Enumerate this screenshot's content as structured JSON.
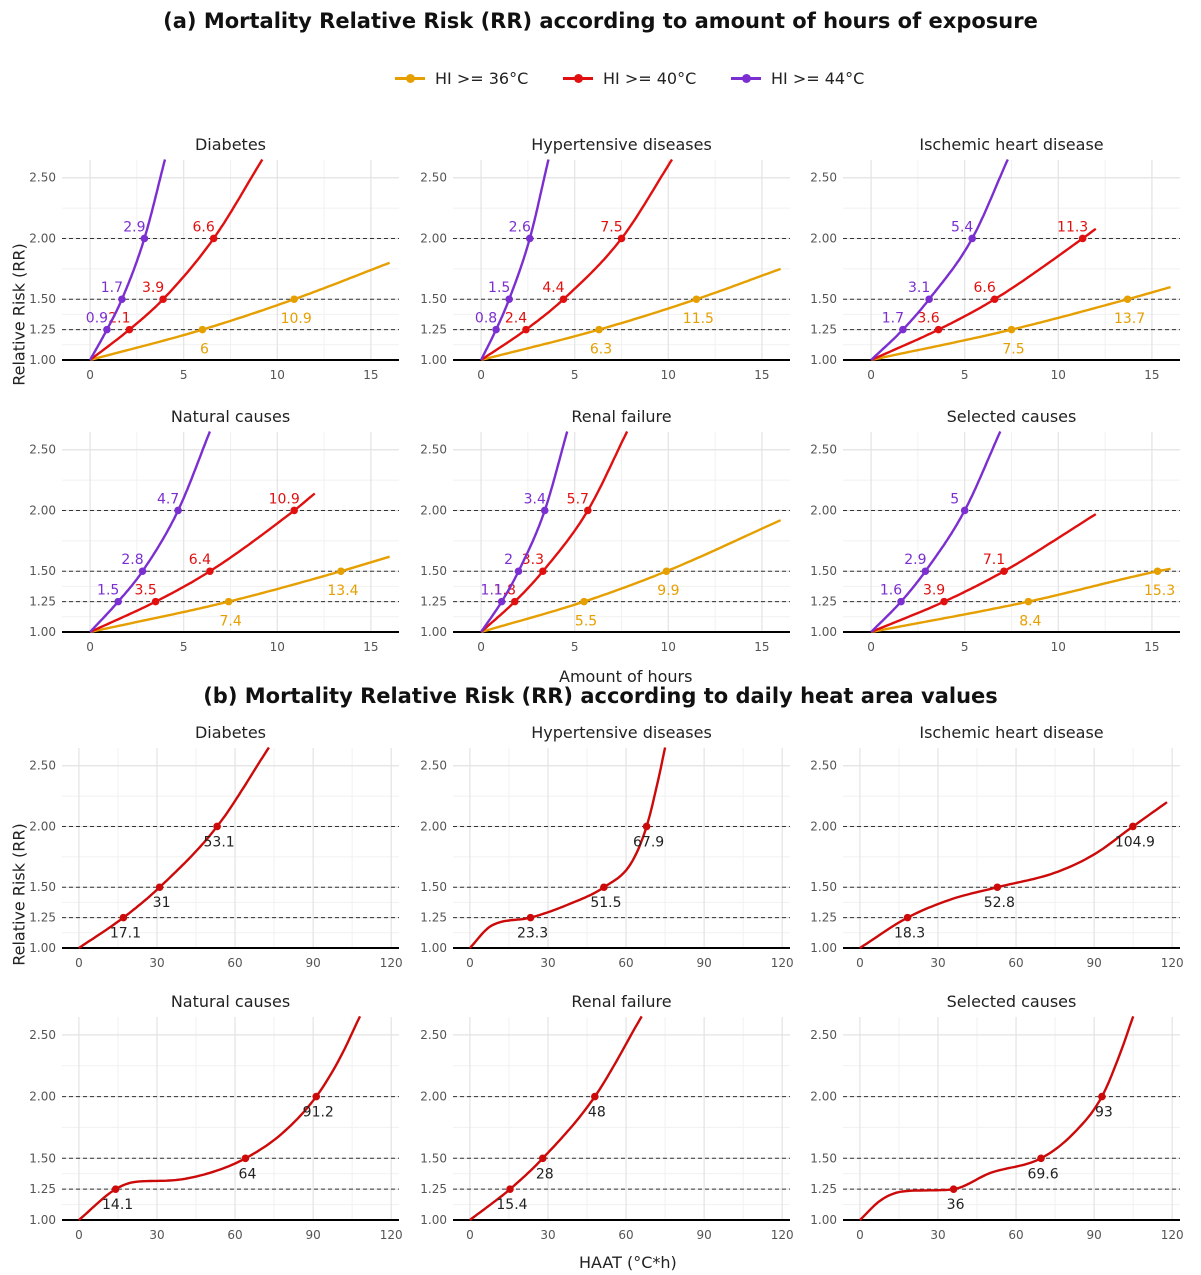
{
  "figure": {
    "title_a": "(a) Mortality Relative Risk (RR) according to amount of hours of exposure",
    "title_b": "(b) Mortality Relative Risk (RR) according to daily heat area values",
    "xlabel_a": "Amount of hours",
    "ylabel_a": "Relative Risk (RR)",
    "xlabel_b": "HAAT (°C*h)",
    "ylabel_b": "Relative Risk (RR)",
    "legend": [
      {
        "label": "HI >= 36°C",
        "color": "#E69F00"
      },
      {
        "label": "HI >= 40°C",
        "color": "#E01010"
      },
      {
        "label": "HI >= 44°C",
        "color": "#7B2FD0"
      }
    ]
  },
  "chart_data": [
    {
      "type": "line",
      "title": "(a) Mortality Relative Risk (RR) according to amount of hours of exposure",
      "xlabel": "Amount of hours",
      "ylabel": "Relative Risk (RR)",
      "xlim": [
        -1.5,
        16.5
      ],
      "ylim": [
        1.0,
        2.58
      ],
      "xticks": [
        0,
        5,
        10,
        15
      ],
      "xtick_labels": [
        "0",
        "5",
        "10",
        "15"
      ],
      "yticks": [
        1.0,
        1.25,
        1.5,
        2.0,
        2.5
      ],
      "ytick_labels": [
        "1.00",
        "1.25",
        "1.50",
        "2.00",
        "2.50"
      ],
      "reference_lines": [
        1.25,
        1.5,
        2.0
      ],
      "grid": true,
      "legend_position": "top",
      "panels": [
        {
          "title": "Diabetes",
          "series": [
            {
              "name": "HI >= 36°C",
              "color": "#E69F00",
              "x": [
                0,
                6,
                10.9,
                16
              ],
              "y": [
                1.0,
                1.25,
                1.5,
                1.8
              ],
              "x_end": 16,
              "points": [
                6,
                10.9
              ],
              "labels": [
                "6",
                "10.9"
              ]
            },
            {
              "name": "HI >= 40°C",
              "color": "#E01010",
              "x": [
                0,
                2.1,
                3.9,
                6.6,
                9.2
              ],
              "y": [
                1.0,
                1.25,
                1.5,
                2.0,
                2.65
              ],
              "x_end": 9.2,
              "points": [
                2.1,
                3.9,
                6.6
              ],
              "labels": [
                "2.1",
                "3.9",
                "6.6"
              ]
            },
            {
              "name": "HI >= 44°C",
              "color": "#7B2FD0",
              "x": [
                0,
                0.9,
                1.7,
                2.9,
                4.0
              ],
              "y": [
                1.0,
                1.25,
                1.5,
                2.0,
                2.65
              ],
              "x_end": 4.0,
              "points": [
                0.9,
                1.7,
                2.9
              ],
              "labels": [
                "0.9",
                "1.7",
                "2.9"
              ]
            }
          ]
        },
        {
          "title": "Hypertensive diseases",
          "series": [
            {
              "name": "HI >= 36°C",
              "color": "#E69F00",
              "x": [
                0,
                6.3,
                11.5,
                16
              ],
              "y": [
                1.0,
                1.25,
                1.5,
                1.75
              ],
              "x_end": 16,
              "points": [
                6.3,
                11.5
              ],
              "labels": [
                "6.3",
                "11.5"
              ]
            },
            {
              "name": "HI >= 40°C",
              "color": "#E01010",
              "x": [
                0,
                2.4,
                4.4,
                7.5,
                10.2
              ],
              "y": [
                1.0,
                1.25,
                1.5,
                2.0,
                2.65
              ],
              "x_end": 10.2,
              "points": [
                2.4,
                4.4,
                7.5
              ],
              "labels": [
                "2.4",
                "4.4",
                "7.5"
              ]
            },
            {
              "name": "HI >= 44°C",
              "color": "#7B2FD0",
              "x": [
                0,
                0.8,
                1.5,
                2.6,
                3.6
              ],
              "y": [
                1.0,
                1.25,
                1.5,
                2.0,
                2.65
              ],
              "x_end": 3.6,
              "points": [
                0.8,
                1.5,
                2.6
              ],
              "labels": [
                "0.8",
                "1.5",
                "2.6"
              ]
            }
          ]
        },
        {
          "title": "Ischemic heart disease",
          "series": [
            {
              "name": "HI >= 36°C",
              "color": "#E69F00",
              "x": [
                0,
                7.5,
                13.7,
                16
              ],
              "y": [
                1.0,
                1.25,
                1.5,
                1.6
              ],
              "x_end": 16,
              "points": [
                7.5,
                13.7
              ],
              "labels": [
                "7.5",
                "13.7"
              ]
            },
            {
              "name": "HI >= 40°C",
              "color": "#E01010",
              "x": [
                0,
                3.6,
                6.6,
                11.3,
                12
              ],
              "y": [
                1.0,
                1.25,
                1.5,
                2.0,
                2.08
              ],
              "x_end": 12,
              "points": [
                3.6,
                6.6,
                11.3
              ],
              "labels": [
                "3.6",
                "6.6",
                "11.3"
              ]
            },
            {
              "name": "HI >= 44°C",
              "color": "#7B2FD0",
              "x": [
                0,
                1.7,
                3.1,
                5.4,
                7.3
              ],
              "y": [
                1.0,
                1.25,
                1.5,
                2.0,
                2.65
              ],
              "x_end": 7.3,
              "points": [
                1.7,
                3.1,
                5.4
              ],
              "labels": [
                "1.7",
                "3.1",
                "5.4"
              ]
            }
          ]
        },
        {
          "title": "Natural causes",
          "series": [
            {
              "name": "HI >= 36°C",
              "color": "#E69F00",
              "x": [
                0,
                7.4,
                13.4,
                16
              ],
              "y": [
                1.0,
                1.25,
                1.5,
                1.62
              ],
              "x_end": 16,
              "points": [
                7.4,
                13.4
              ],
              "labels": [
                "7.4",
                "13.4"
              ]
            },
            {
              "name": "HI >= 40°C",
              "color": "#E01010",
              "x": [
                0,
                3.5,
                6.4,
                10.9,
                12
              ],
              "y": [
                1.0,
                1.25,
                1.5,
                2.0,
                2.14
              ],
              "x_end": 12,
              "points": [
                3.5,
                6.4,
                10.9
              ],
              "labels": [
                "3.5",
                "6.4",
                "10.9"
              ]
            },
            {
              "name": "HI >= 44°C",
              "color": "#7B2FD0",
              "x": [
                0,
                1.5,
                2.8,
                4.7,
                6.4
              ],
              "y": [
                1.0,
                1.25,
                1.5,
                2.0,
                2.65
              ],
              "x_end": 6.4,
              "points": [
                1.5,
                2.8,
                4.7
              ],
              "labels": [
                "1.5",
                "2.8",
                "4.7"
              ]
            }
          ]
        },
        {
          "title": "Renal failure",
          "series": [
            {
              "name": "HI >= 36°C",
              "color": "#E69F00",
              "x": [
                0,
                5.5,
                9.9,
                16
              ],
              "y": [
                1.0,
                1.25,
                1.5,
                1.92
              ],
              "x_end": 16,
              "points": [
                5.5,
                9.9
              ],
              "labels": [
                "5.5",
                "9.9"
              ]
            },
            {
              "name": "HI >= 40°C",
              "color": "#E01010",
              "x": [
                0,
                1.8,
                3.3,
                5.7,
                7.8
              ],
              "y": [
                1.0,
                1.25,
                1.5,
                2.0,
                2.65
              ],
              "x_end": 7.8,
              "points": [
                1.8,
                3.3,
                5.7
              ],
              "labels": [
                "1.8",
                "3.3",
                "5.7"
              ]
            },
            {
              "name": "HI >= 44°C",
              "color": "#7B2FD0",
              "x": [
                0,
                1.1,
                2.0,
                3.4,
                4.6
              ],
              "y": [
                1.0,
                1.25,
                1.5,
                2.0,
                2.65
              ],
              "x_end": 4.6,
              "points": [
                1.1,
                2.0,
                3.4
              ],
              "labels": [
                "1.1",
                "2",
                "3.4"
              ]
            }
          ]
        },
        {
          "title": "Selected causes",
          "series": [
            {
              "name": "HI >= 36°C",
              "color": "#E69F00",
              "x": [
                0,
                8.4,
                15.3,
                16
              ],
              "y": [
                1.0,
                1.25,
                1.5,
                1.52
              ],
              "x_end": 16,
              "points": [
                8.4,
                15.3
              ],
              "labels": [
                "8.4",
                "15.3"
              ]
            },
            {
              "name": "HI >= 40°C",
              "color": "#E01010",
              "x": [
                0,
                3.9,
                7.1,
                12
              ],
              "y": [
                1.0,
                1.25,
                1.5,
                1.97
              ],
              "x_end": 12,
              "points": [
                3.9,
                7.1
              ],
              "labels": [
                "3.9",
                "7.1"
              ]
            },
            {
              "name": "HI >= 44°C",
              "color": "#7B2FD0",
              "x": [
                0,
                1.6,
                2.9,
                5.0,
                6.9
              ],
              "y": [
                1.0,
                1.25,
                1.5,
                2.0,
                2.65
              ],
              "x_end": 6.9,
              "points": [
                1.6,
                2.9,
                5.0
              ],
              "labels": [
                "1.6",
                "2.9",
                "5"
              ]
            }
          ]
        }
      ]
    },
    {
      "type": "line",
      "title": "(b) Mortality Relative Risk (RR) according to daily heat area values",
      "xlabel": "HAAT (°C*h)",
      "ylabel": "Relative Risk (RR)",
      "xlim": [
        -6.5,
        123
      ],
      "ylim": [
        1.0,
        2.58
      ],
      "xticks": [
        0,
        30,
        60,
        90,
        120
      ],
      "xtick_labels": [
        "0",
        "30",
        "60",
        "90",
        "120"
      ],
      "yticks": [
        1.0,
        1.25,
        1.5,
        2.0,
        2.5
      ],
      "ytick_labels": [
        "1.00",
        "1.25",
        "1.50",
        "2.00",
        "2.50"
      ],
      "reference_lines": [
        1.25,
        1.5,
        2.0
      ],
      "grid": true,
      "panels": [
        {
          "title": "Diabetes",
          "series": [
            {
              "name": "HAAT",
              "color": "#CC0A0A",
              "x": [
                0,
                17.1,
                31,
                53.1,
                73
              ],
              "y": [
                1.0,
                1.25,
                1.5,
                2.0,
                2.65
              ],
              "x_end": 73,
              "points": [
                17.1,
                31,
                53.1
              ],
              "labels": [
                "17.1",
                "31",
                "53.1"
              ]
            }
          ]
        },
        {
          "title": "Hypertensive diseases",
          "series": [
            {
              "name": "HAAT",
              "color": "#CC0A0A",
              "x": [
                0,
                8,
                23.3,
                38,
                51.5,
                62,
                67.9,
                72,
                75
              ],
              "y": [
                1.0,
                1.18,
                1.25,
                1.36,
                1.5,
                1.7,
                2.0,
                2.35,
                2.65
              ],
              "x_end": 75,
              "points": [
                23.3,
                51.5,
                67.9
              ],
              "labels": [
                "23.3",
                "51.5",
                "67.9"
              ]
            }
          ]
        },
        {
          "title": "Ischemic heart disease",
          "series": [
            {
              "name": "HAAT",
              "color": "#CC0A0A",
              "x": [
                0,
                18.3,
                35,
                52.8,
                75,
                90,
                104.9,
                118
              ],
              "y": [
                1.0,
                1.25,
                1.4,
                1.5,
                1.62,
                1.77,
                2.0,
                2.2
              ],
              "x_end": 118,
              "points": [
                18.3,
                52.8,
                104.9
              ],
              "labels": [
                "18.3",
                "52.8",
                "104.9"
              ]
            }
          ]
        },
        {
          "title": "Natural causes",
          "series": [
            {
              "name": "HAAT",
              "color": "#CC0A0A",
              "x": [
                0,
                14.1,
                22,
                35,
                50,
                64,
                78,
                91.2,
                100,
                108
              ],
              "y": [
                1.0,
                1.25,
                1.31,
                1.32,
                1.38,
                1.5,
                1.7,
                2.0,
                2.3,
                2.65
              ],
              "x_end": 108,
              "points": [
                14.1,
                64,
                91.2
              ],
              "labels": [
                "14.1",
                "64",
                "91.2"
              ]
            }
          ]
        },
        {
          "title": "Renal failure",
          "series": [
            {
              "name": "HAAT",
              "color": "#CC0A0A",
              "x": [
                0,
                15.4,
                28,
                48,
                66
              ],
              "y": [
                1.0,
                1.25,
                1.5,
                2.0,
                2.65
              ],
              "x_end": 66,
              "points": [
                15.4,
                28,
                48
              ],
              "labels": [
                "15.4",
                "28",
                "48"
              ]
            }
          ]
        },
        {
          "title": "Selected causes",
          "series": [
            {
              "name": "HAAT",
              "color": "#CC0A0A",
              "x": [
                0,
                8,
                16,
                26,
                36,
                50,
                69.6,
                82,
                93,
                100,
                105
              ],
              "y": [
                1.0,
                1.16,
                1.23,
                1.24,
                1.25,
                1.38,
                1.5,
                1.7,
                2.0,
                2.35,
                2.65
              ],
              "x_end": 105,
              "points": [
                36,
                69.6,
                93
              ],
              "labels": [
                "36",
                "69.6",
                "93"
              ]
            }
          ]
        }
      ]
    }
  ]
}
